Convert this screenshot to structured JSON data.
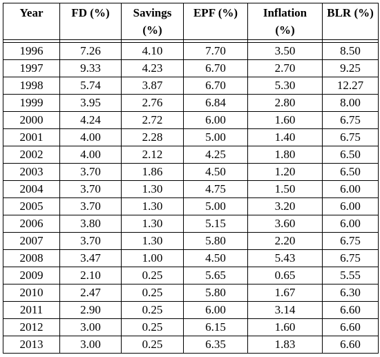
{
  "table": {
    "headers": [
      {
        "line1": "Year",
        "line2": ""
      },
      {
        "line1": "FD (%)",
        "line2": ""
      },
      {
        "line1": "Savings",
        "line2": "(%)"
      },
      {
        "line1": "EPF (%)",
        "line2": ""
      },
      {
        "line1": "Inflation",
        "line2": "(%)"
      },
      {
        "line1": "BLR (%)",
        "line2": ""
      }
    ],
    "rows": [
      [
        "1996",
        "7.26",
        "4.10",
        "7.70",
        "3.50",
        "8.50"
      ],
      [
        "1997",
        "9.33",
        "4.23",
        "6.70",
        "2.70",
        "9.25"
      ],
      [
        "1998",
        "5.74",
        "3.87",
        "6.70",
        "5.30",
        "12.27"
      ],
      [
        "1999",
        "3.95",
        "2.76",
        "6.84",
        "2.80",
        "8.00"
      ],
      [
        "2000",
        "4.24",
        "2.72",
        "6.00",
        "1.60",
        "6.75"
      ],
      [
        "2001",
        "4.00",
        "2.28",
        "5.00",
        "1.40",
        "6.75"
      ],
      [
        "2002",
        "4.00",
        "2.12",
        "4.25",
        "1.80",
        "6.50"
      ],
      [
        "2003",
        "3.70",
        "1.86",
        "4.50",
        "1.20",
        "6.50"
      ],
      [
        "2004",
        "3.70",
        "1.30",
        "4.75",
        "1.50",
        "6.00"
      ],
      [
        "2005",
        "3.70",
        "1.30",
        "5.00",
        "3.20",
        "6.00"
      ],
      [
        "2006",
        "3.80",
        "1.30",
        "5.15",
        "3.60",
        "6.00"
      ],
      [
        "2007",
        "3.70",
        "1.30",
        "5.80",
        "2.20",
        "6.75"
      ],
      [
        "2008",
        "3.47",
        "1.00",
        "4.50",
        "5.43",
        "6.75"
      ],
      [
        "2009",
        "2.10",
        "0.25",
        "5.65",
        "0.65",
        "5.55"
      ],
      [
        "2010",
        "2.47",
        "0.25",
        "5.80",
        "1.67",
        "6.30"
      ],
      [
        "2011",
        "2.90",
        "0.25",
        "6.00",
        "3.14",
        "6.60"
      ],
      [
        "2012",
        "3.00",
        "0.25",
        "6.15",
        "1.60",
        "6.60"
      ],
      [
        "2013",
        "3.00",
        "0.25",
        "6.35",
        "1.83",
        "6.60"
      ]
    ]
  }
}
